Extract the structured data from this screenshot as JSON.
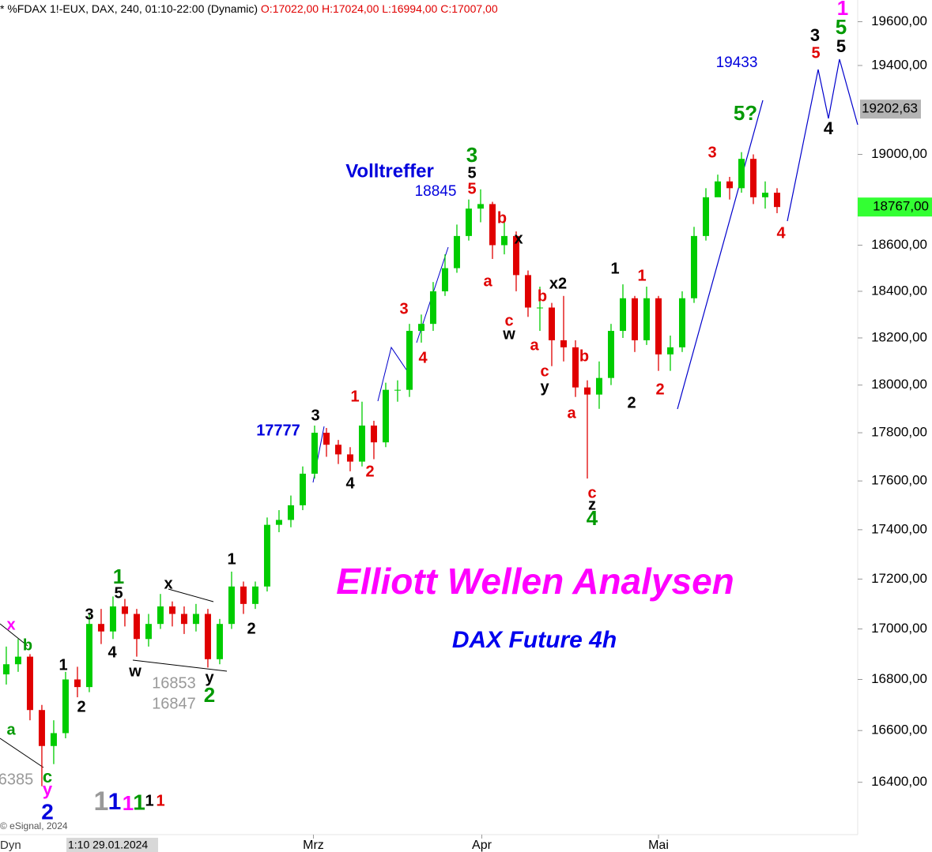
{
  "chart_data": {
    "type": "candlestick",
    "header_title": "* %FDAX 1!-EUX, DAX, 240, 01:10-22:00 (Dynamic)",
    "header_ohlc": "O:17022,00 H:17024,00 L:16994,00 C:17007,00",
    "title": "Elliott Wellen Analysen",
    "subtitle": "DAX Future 4h",
    "credit": "© eSignal, 2024",
    "mode_label": "Dyn",
    "cursor_label": "1:10 29.01.2024",
    "log_scale": true,
    "up_color": "#00cc00",
    "down_color": "#e00000",
    "x": [
      0,
      1,
      2,
      3,
      4,
      5,
      6,
      7,
      8,
      9,
      10,
      11,
      12,
      13,
      14,
      15,
      16,
      17,
      18,
      19,
      20,
      21,
      22,
      23,
      24,
      25,
      26,
      27,
      28,
      29,
      30,
      31,
      32,
      33,
      34,
      35,
      36,
      37,
      38,
      39,
      40,
      41,
      42,
      43,
      44,
      45,
      46,
      47,
      48,
      49,
      50,
      51,
      52,
      53,
      54,
      55,
      56,
      57,
      58,
      59,
      60,
      61,
      62,
      63,
      64,
      65
    ],
    "open": [
      16820,
      16860,
      16890,
      16680,
      16540,
      16590,
      16800,
      16770,
      17020,
      16990,
      17090,
      17060,
      16960,
      17020,
      17090,
      17060,
      17020,
      17060,
      16880,
      17020,
      17170,
      17100,
      17170,
      17420,
      17440,
      17500,
      17630,
      17800,
      17750,
      17710,
      17680,
      17830,
      17760,
      17980,
      17980,
      18230,
      18260,
      18400,
      18500,
      18640,
      18760,
      18780,
      18600,
      18640,
      18470,
      18330,
      18330,
      18190,
      18160,
      17990,
      17960,
      18030,
      18230,
      18370,
      18190,
      18370,
      18130,
      18160,
      18370,
      18640,
      18810,
      18880,
      18850,
      18980,
      18810,
      18830
    ],
    "high": [
      16930,
      16960,
      16900,
      16700,
      16640,
      16830,
      16850,
      17060,
      17080,
      17130,
      17120,
      17080,
      17060,
      17140,
      17110,
      17090,
      17100,
      17080,
      17040,
      17230,
      17190,
      17190,
      17450,
      17480,
      17540,
      17660,
      17830,
      17820,
      17770,
      17740,
      17930,
      17850,
      18010,
      18020,
      18260,
      18300,
      18440,
      18560,
      18690,
      18800,
      18845,
      18790,
      18710,
      18660,
      18490,
      18420,
      18350,
      18380,
      18190,
      18020,
      18100,
      18260,
      18430,
      18380,
      18420,
      18380,
      18210,
      18400,
      18680,
      18850,
      18910,
      18900,
      19010,
      19000,
      18880,
      18850
    ],
    "low": [
      16780,
      16830,
      16640,
      16385,
      16470,
      16570,
      16730,
      16750,
      16940,
      16960,
      17010,
      16890,
      16930,
      17000,
      17010,
      16980,
      16990,
      16847,
      16860,
      17000,
      17060,
      17080,
      17150,
      17390,
      17410,
      17480,
      17610,
      17700,
      17670,
      17640,
      17660,
      17690,
      17740,
      17930,
      17950,
      18180,
      18230,
      18380,
      18480,
      18620,
      18700,
      18540,
      18560,
      18400,
      18290,
      18230,
      18080,
      18100,
      17950,
      17610,
      17900,
      18000,
      18200,
      18140,
      18170,
      18060,
      18060,
      18140,
      18350,
      18620,
      18840,
      18800,
      18830,
      18780,
      18760,
      18740
    ],
    "close": [
      16860,
      16890,
      16680,
      16540,
      16590,
      16800,
      16770,
      17020,
      16990,
      17090,
      17060,
      16960,
      17020,
      17090,
      17060,
      17020,
      17060,
      16880,
      17020,
      17170,
      17100,
      17170,
      17420,
      17440,
      17500,
      17630,
      17800,
      17750,
      17710,
      17680,
      17830,
      17760,
      17980,
      17980,
      18230,
      18260,
      18400,
      18500,
      18640,
      18760,
      18780,
      18600,
      18640,
      18470,
      18330,
      18330,
      18190,
      18160,
      17990,
      17960,
      18030,
      18230,
      18370,
      18190,
      18370,
      18130,
      18160,
      18370,
      18640,
      18810,
      18880,
      18850,
      18980,
      18810,
      18830,
      18767
    ],
    "xlim": [
      -0.53,
      71.8
    ],
    "xticks": [
      {
        "value": 25.9,
        "label": "Mrz"
      },
      {
        "value": 40.1,
        "label": "Apr"
      },
      {
        "value": 55,
        "label": "Mai"
      }
    ],
    "ylim": [
      16200,
      19700
    ],
    "yticks": [
      {
        "value": 16400,
        "label": "16400,00"
      },
      {
        "value": 16600,
        "label": "16600,00"
      },
      {
        "value": 16800,
        "label": "16800,00"
      },
      {
        "value": 17000,
        "label": "17000,00"
      },
      {
        "value": 17200,
        "label": "17200,00"
      },
      {
        "value": 17400,
        "label": "17400,00"
      },
      {
        "value": 17600,
        "label": "17600,00"
      },
      {
        "value": 17800,
        "label": "17800,00"
      },
      {
        "value": 18000,
        "label": "18000,00"
      },
      {
        "value": 18200,
        "label": "18200,00"
      },
      {
        "value": 18400,
        "label": "18400,00"
      },
      {
        "value": 18600,
        "label": "18600,00"
      },
      {
        "value": 19000,
        "label": "19000,00"
      },
      {
        "value": 19400,
        "label": "19400,00"
      },
      {
        "value": 19600,
        "label": "19600,00"
      }
    ],
    "marker_price": {
      "value": 19202.63,
      "label": "19202,63",
      "color": "#b4b4b4"
    },
    "last_price": {
      "value": 18767,
      "label": "18767,00",
      "color": "#33ff33"
    },
    "annotations": [
      "x",
      "b",
      "a",
      "c",
      "y",
      "2",
      "6385",
      "1",
      "2",
      "3",
      "4",
      "5",
      "1",
      "x",
      "w",
      "y",
      "2",
      "16853",
      "16847",
      "1",
      "2",
      "3",
      "17777",
      "4",
      "1",
      "2",
      "3",
      "4",
      "Volltreffer",
      "18845",
      "3",
      "5",
      "5",
      "b",
      "a",
      "x",
      "c",
      "w",
      "b",
      "x2",
      "a",
      "c",
      "y",
      "b",
      "a",
      "c",
      "z",
      "4",
      "1",
      "2",
      "1",
      "2",
      "3",
      "5?",
      "4",
      "19433",
      "3",
      "5",
      "4",
      "5",
      "5",
      "1",
      "1",
      "1",
      "1",
      "1",
      "1",
      "1"
    ]
  }
}
